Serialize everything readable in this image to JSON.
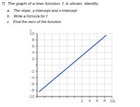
{
  "chart_data": {
    "type": "line",
    "title": "7)  The graph of a liner function, f, is shown. Identify:",
    "annotations": [
      "a.   The slope, y-intercept and x-intercept",
      "b.   Write a formula for f.",
      "c.   Find the zero of the function."
    ],
    "xlabel": "x",
    "ylabel": "y",
    "x": [
      -9.5,
      8.5
    ],
    "values": [
      -8.5,
      9.5
    ],
    "color": "#2255bb",
    "xlim": [
      -10,
      10
    ],
    "ylim": [
      -10,
      10
    ],
    "xticks": [
      {
        "value": -10,
        "label": ""
      },
      {
        "value": -8,
        "label": ""
      },
      {
        "value": -6,
        "label": ""
      },
      {
        "value": -4,
        "label": ""
      },
      {
        "value": -2,
        "label": ""
      },
      {
        "value": 0,
        "label": ""
      },
      2,
      4,
      6,
      8,
      10
    ],
    "yticks": [
      -10,
      -8,
      -6,
      -4,
      -2,
      {
        "value": 0,
        "label": ""
      },
      2,
      4,
      6,
      8,
      10
    ],
    "grid": true
  }
}
